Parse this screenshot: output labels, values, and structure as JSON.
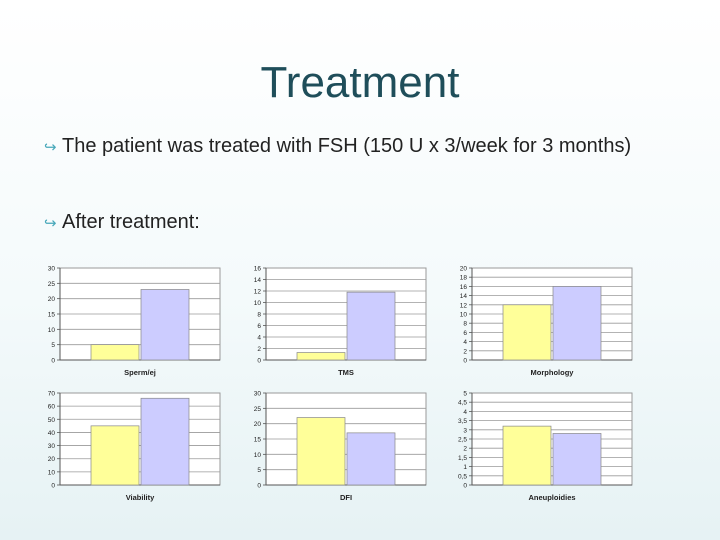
{
  "slide": {
    "title": "Treatment",
    "bullets": [
      "The patient was treated with FSH (150 U x 3/week for 3 months)",
      "After treatment:"
    ],
    "bullet_icon": "curved-arrow-bullet-icon"
  },
  "colors": {
    "title": "#1f4e5a",
    "bullet_icon": "#48a8ba",
    "bar_before": "#ffff99",
    "bar_after": "#ccccff"
  },
  "chart_data": [
    {
      "type": "bar",
      "title": "",
      "xlabel": "Sperm/ej",
      "categories": [
        "",
        ""
      ],
      "values": [
        5,
        23
      ],
      "ylim": [
        0,
        30
      ],
      "yticks": [
        "0",
        "5",
        "10",
        "15",
        "20",
        "25",
        "30"
      ],
      "grid": true
    },
    {
      "type": "bar",
      "title": "",
      "xlabel": "TMS",
      "categories": [
        "",
        ""
      ],
      "values": [
        1.3,
        11.8
      ],
      "ylim": [
        0,
        16
      ],
      "yticks": [
        "0",
        "2",
        "4",
        "6",
        "8",
        "10",
        "12",
        "14",
        "16"
      ],
      "grid": true
    },
    {
      "type": "bar",
      "title": "",
      "xlabel": "Morphology",
      "categories": [
        "",
        ""
      ],
      "values": [
        12,
        16
      ],
      "ylim": [
        0,
        20
      ],
      "yticks": [
        "0",
        "2",
        "4",
        "6",
        "8",
        "10",
        "12",
        "14",
        "16",
        "18",
        "20"
      ],
      "grid": true
    },
    {
      "type": "bar",
      "title": "",
      "xlabel": "Viability",
      "categories": [
        "",
        ""
      ],
      "values": [
        45,
        66
      ],
      "ylim": [
        0,
        70
      ],
      "yticks": [
        "0",
        "10",
        "20",
        "30",
        "40",
        "50",
        "60",
        "70"
      ],
      "grid": true
    },
    {
      "type": "bar",
      "title": "",
      "xlabel": "DFI",
      "categories": [
        "",
        ""
      ],
      "values": [
        22,
        17
      ],
      "ylim": [
        0,
        30
      ],
      "yticks": [
        "0",
        "5",
        "10",
        "15",
        "20",
        "25",
        "30"
      ],
      "grid": true
    },
    {
      "type": "bar",
      "title": "",
      "xlabel": "Aneuploidies",
      "categories": [
        "",
        ""
      ],
      "values": [
        3.2,
        2.8
      ],
      "ylim": [
        0,
        5
      ],
      "yticks": [
        "0",
        "0,5",
        "1",
        "1,5",
        "2",
        "2,5",
        "3",
        "3,5",
        "4",
        "4,5",
        "5"
      ],
      "grid": true
    }
  ]
}
